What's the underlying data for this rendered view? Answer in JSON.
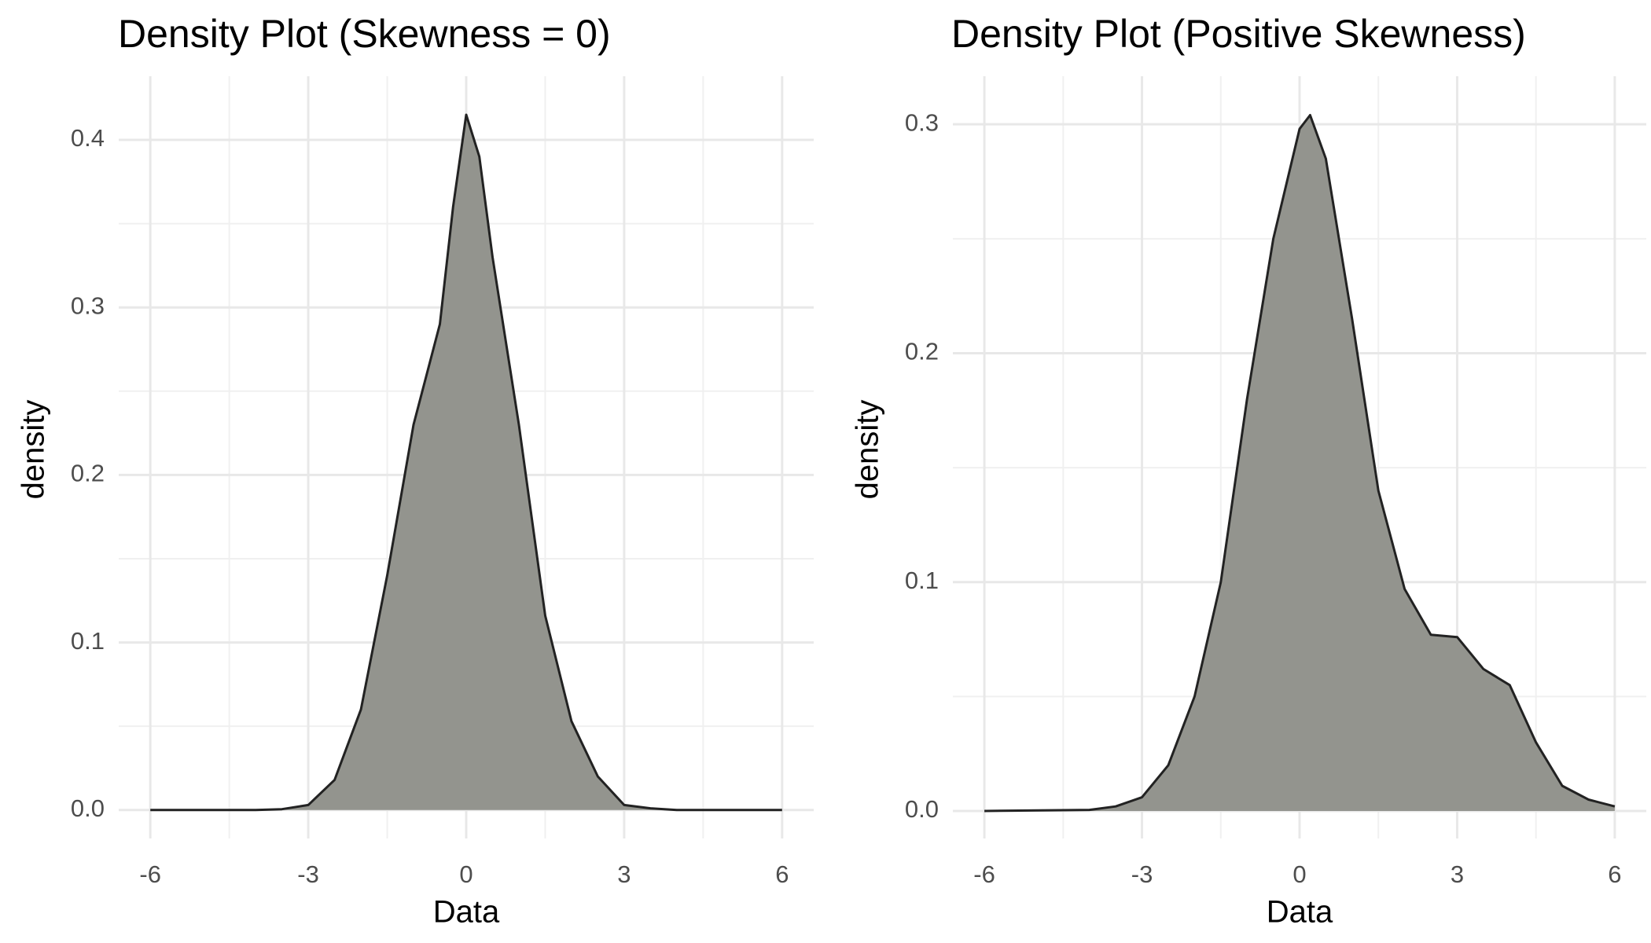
{
  "chart_data": [
    {
      "type": "density",
      "title": "Density Plot (Skewness = 0)",
      "x_label": "Data",
      "y_label": "density",
      "color": "#93948e",
      "line_color": "#222222",
      "x": [
        -6,
        -4,
        -3.5,
        -3,
        -2.5,
        -2,
        -1.5,
        -1,
        -0.5,
        -0.25,
        0,
        0.25,
        0.5,
        1,
        1.5,
        2,
        2.5,
        3,
        3.5,
        4,
        6
      ],
      "y": [
        0,
        0,
        0.0005,
        0.003,
        0.018,
        0.06,
        0.14,
        0.23,
        0.29,
        0.36,
        0.415,
        0.39,
        0.33,
        0.23,
        0.116,
        0.053,
        0.02,
        0.003,
        0.001,
        0,
        0
      ],
      "xlim": [
        -6.6,
        6.6
      ],
      "ylim": [
        -0.017,
        0.438
      ],
      "xticks": [
        -6,
        -3,
        0,
        3,
        6
      ],
      "x_minor_ticks": [
        -4.5,
        -1.5,
        1.5,
        4.5
      ],
      "yticks": [
        {
          "value": 0,
          "label": "0.0"
        },
        0.1,
        0.2,
        0.3,
        0.4
      ],
      "y_minor_ticks": [
        0.05,
        0.15,
        0.25,
        0.35
      ],
      "grid": true
    },
    {
      "type": "density",
      "title": "Density Plot (Positive Skewness)",
      "x_label": "Data",
      "y_label": "density",
      "color": "#93948e",
      "line_color": "#222222",
      "x": [
        -6,
        -4,
        -3.5,
        -3,
        -2.5,
        -2,
        -1.5,
        -1,
        -0.5,
        0,
        0.2,
        0.5,
        1,
        1.5,
        2,
        2.5,
        3,
        3.5,
        4,
        4.5,
        5,
        5.5,
        6
      ],
      "y": [
        0,
        0.0005,
        0.002,
        0.006,
        0.02,
        0.05,
        0.1,
        0.18,
        0.25,
        0.298,
        0.304,
        0.285,
        0.215,
        0.14,
        0.097,
        0.077,
        0.076,
        0.062,
        0.055,
        0.03,
        0.011,
        0.005,
        0.002
      ],
      "xlim": [
        -6.6,
        6.6
      ],
      "ylim": [
        -0.012,
        0.321
      ],
      "xticks": [
        -6,
        -3,
        0,
        3,
        6
      ],
      "x_minor_ticks": [
        -4.5,
        -1.5,
        1.5,
        4.5
      ],
      "yticks": [
        {
          "value": 0,
          "label": "0.0"
        },
        0.1,
        0.2,
        0.3
      ],
      "y_minor_ticks": [
        0.05,
        0.15,
        0.25
      ],
      "grid": true
    }
  ]
}
